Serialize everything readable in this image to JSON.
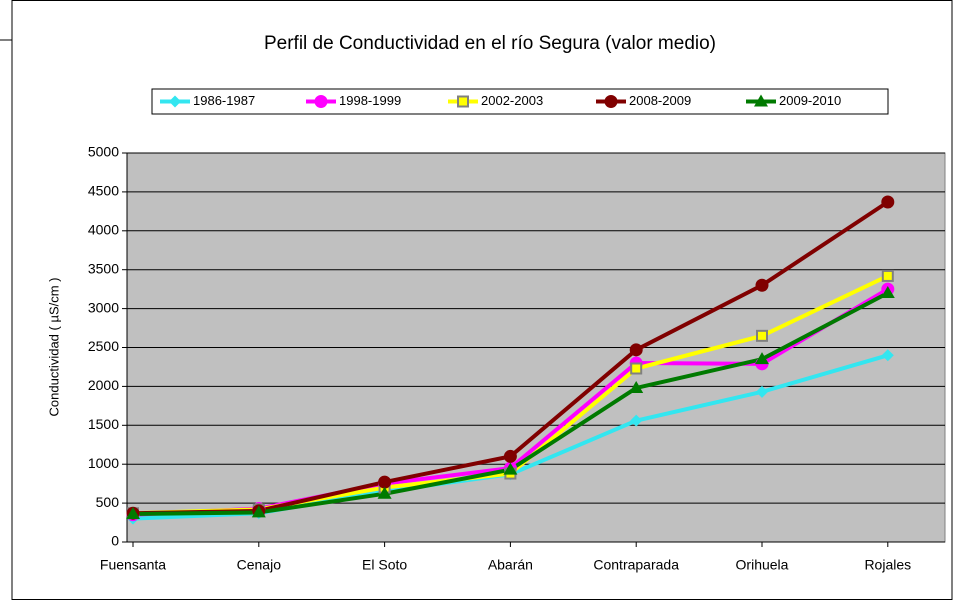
{
  "chart_data": {
    "type": "line",
    "title": "Perfil de Conductividad en el río Segura (valor medio)",
    "y_label": "Conductividad ( µS/cm )",
    "categories": [
      "Fuensanta",
      "Cenajo",
      "El Soto",
      "Abarán",
      "Contraparada",
      "Orihuela",
      "Rojales"
    ],
    "series": [
      {
        "name": "1986-1987",
        "color": "#33e6f0",
        "marker": "diamond",
        "values": [
          300,
          370,
          650,
          870,
          1560,
          1930,
          2400
        ]
      },
      {
        "name": "1998-1999",
        "color": "#ff00ff",
        "marker": "circle",
        "values": [
          350,
          430,
          750,
          950,
          2300,
          2290,
          3250
        ]
      },
      {
        "name": "2002-2003",
        "color": "#ffff00",
        "marker": "square",
        "values": [
          370,
          420,
          700,
          880,
          2230,
          2650,
          3420
        ]
      },
      {
        "name": "2008-2009",
        "color": "#800000",
        "marker": "circle",
        "values": [
          370,
          400,
          770,
          1100,
          2470,
          3300,
          4370
        ]
      },
      {
        "name": "2009-2010",
        "color": "#007a00",
        "marker": "triangle",
        "values": [
          360,
          380,
          620,
          930,
          1980,
          2350,
          3200
        ]
      }
    ],
    "ylim": [
      0,
      5000
    ],
    "yticks": [
      0,
      500,
      1000,
      1500,
      2000,
      2500,
      3000,
      3500,
      4000,
      4500,
      5000
    ],
    "grid": true
  }
}
